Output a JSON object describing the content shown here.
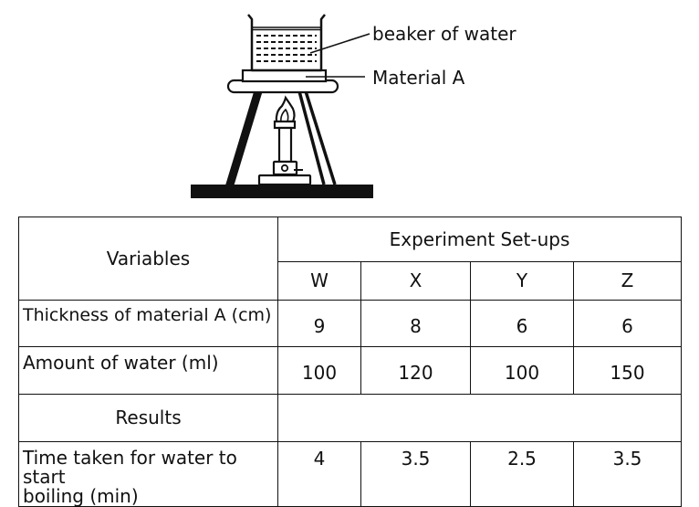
{
  "diagram": {
    "label_beaker": "beaker of water",
    "label_material": "Material A"
  },
  "table": {
    "header_variables": "Variables",
    "header_group": "Experiment Set-ups",
    "setups": [
      "W",
      "X",
      "Y",
      "Z"
    ],
    "rows": [
      {
        "label": "Thickness of material A (cm)",
        "values": [
          "9",
          "8",
          "6",
          "6"
        ]
      },
      {
        "label": "Amount of water (ml)",
        "values": [
          "100",
          "120",
          "100",
          "150"
        ]
      }
    ],
    "results_label": "Results",
    "result_row": {
      "label_line1": "Time taken for water to start",
      "label_line2": "boiling (min)",
      "values": [
        "4",
        "3.5",
        "2.5",
        "3.5"
      ]
    }
  }
}
